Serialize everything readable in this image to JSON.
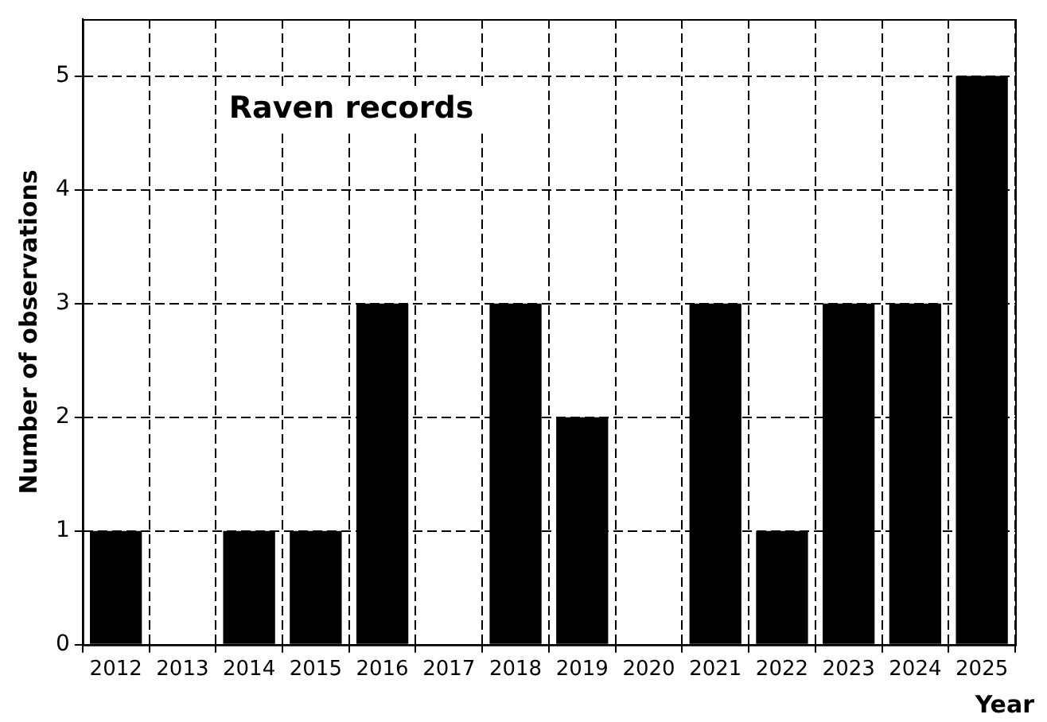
{
  "chart_data": {
    "type": "bar",
    "title": "Raven records",
    "xlabel": "Year",
    "ylabel": "Number of observations",
    "categories": [
      "2012",
      "2013",
      "2014",
      "2015",
      "2016",
      "2017",
      "2018",
      "2019",
      "2020",
      "2021",
      "2022",
      "2023",
      "2024",
      "2025"
    ],
    "values": [
      1,
      0,
      1,
      1,
      3,
      0,
      3,
      2,
      0,
      3,
      1,
      3,
      3,
      5
    ],
    "color": "#000000",
    "ylim": [
      0,
      5.5
    ],
    "yticks": [
      0,
      1,
      2,
      3,
      4,
      5
    ],
    "grid": true,
    "legend": false
  }
}
